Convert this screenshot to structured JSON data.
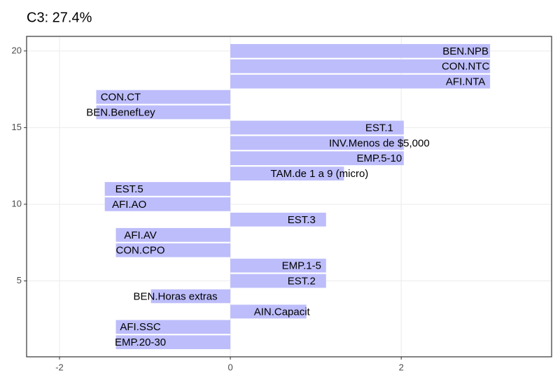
{
  "chart_data": {
    "type": "barh",
    "title": "C3: 27.4%",
    "categories": [
      "EMP.20-30",
      "AFI.SSC",
      "AIN.Capacit",
      "BEN.Horas extras",
      "EST.2",
      "EMP.1-5",
      "CON.CPO",
      "AFI.AV",
      "EST.3",
      "AFI.AO",
      "EST.5",
      "TAM.de 1 a 9 (micro)",
      "EMP.5-10",
      "INV.Menos de $5,000",
      "EST.1",
      "BEN.BenefLey",
      "CON.CT",
      "AFI.NTA",
      "CON.NTC",
      "BEN.NPB"
    ],
    "y": [
      1,
      2,
      3,
      4,
      5,
      6,
      7,
      8,
      9,
      10,
      11,
      12,
      13,
      14,
      15,
      16,
      17,
      18,
      19,
      20
    ],
    "values": [
      -1.34,
      -1.34,
      0.89,
      -0.93,
      1.12,
      1.12,
      -1.34,
      -1.34,
      1.12,
      -1.47,
      -1.47,
      1.33,
      2.03,
      2.03,
      2.03,
      -1.57,
      -1.57,
      3.04,
      3.04,
      3.04
    ],
    "color": "#bdbdfb",
    "xlim": [
      -2.385,
      3.76
    ],
    "xticks": [
      -2,
      0,
      2
    ],
    "ylim": [
      0.05,
      20.95
    ],
    "yticks": [
      5,
      10,
      15,
      20
    ],
    "grid": true
  }
}
